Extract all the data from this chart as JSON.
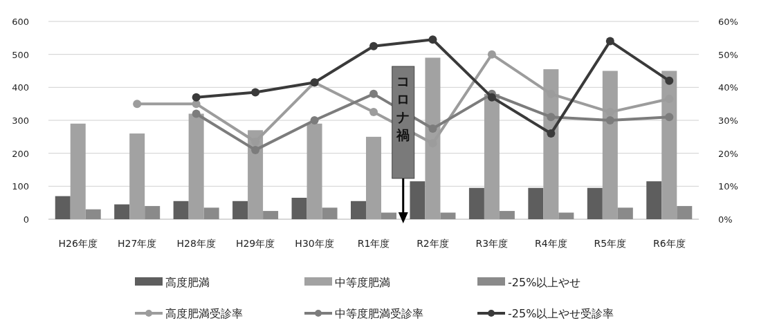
{
  "chart_data": {
    "type": "bar",
    "categories": [
      "H26年度",
      "H27年度",
      "H28年度",
      "H29年度",
      "H30年度",
      "R1年度",
      "R2年度",
      "R3年度",
      "R4年度",
      "R5年度",
      "R6年度"
    ],
    "ylim": [
      0,
      600
    ],
    "yticks": [
      0,
      100,
      200,
      300,
      400,
      500,
      600
    ],
    "y2lim": [
      0,
      60
    ],
    "y2ticks": [
      {
        "value": 0,
        "label": "0%"
      },
      {
        "value": 10,
        "label": "10%"
      },
      {
        "value": 20,
        "label": "20%"
      },
      {
        "value": 30,
        "label": "30%"
      },
      {
        "value": 40,
        "label": "40%"
      },
      {
        "value": 50,
        "label": "50%"
      },
      {
        "value": 60,
        "label": "60%"
      }
    ],
    "grid": "y",
    "legend": "bottom",
    "marker": "circle",
    "annotations": [
      "コロナ禍"
    ],
    "series": [
      {
        "name": "高度肥満",
        "color": "#5e5e5e",
        "values": [
          70,
          45,
          55,
          55,
          65,
          55,
          115,
          95,
          95,
          95,
          115
        ]
      },
      {
        "name": "中等度肥満",
        "color": "#a2a2a2",
        "values": [
          290,
          260,
          320,
          270,
          290,
          250,
          490,
          380,
          455,
          450,
          450
        ]
      },
      {
        "name": "-25%以上やせ",
        "color": "#8a8a8a",
        "values": [
          30,
          40,
          35,
          25,
          35,
          20,
          20,
          25,
          20,
          35,
          40
        ]
      },
      {
        "name": "高度肥満受診率",
        "type": "line",
        "axis": "y2",
        "color": "#9c9c9c",
        "values": [
          null,
          35,
          35,
          23.5,
          41.5,
          32.5,
          23,
          50,
          38,
          32.5,
          36.5
        ]
      },
      {
        "name": "中等度肥満受診率",
        "type": "line",
        "axis": "y2",
        "color": "#7c7c7c",
        "values": [
          null,
          null,
          32,
          21,
          30,
          38,
          27.5,
          38,
          31,
          30,
          31
        ]
      },
      {
        "name": "-25%以上やせ受診率",
        "type": "line",
        "axis": "y2",
        "color": "#3a3a3a",
        "values": [
          null,
          null,
          37,
          38.5,
          41.5,
          52.5,
          54.5,
          37,
          26,
          54,
          42
        ]
      }
    ]
  }
}
